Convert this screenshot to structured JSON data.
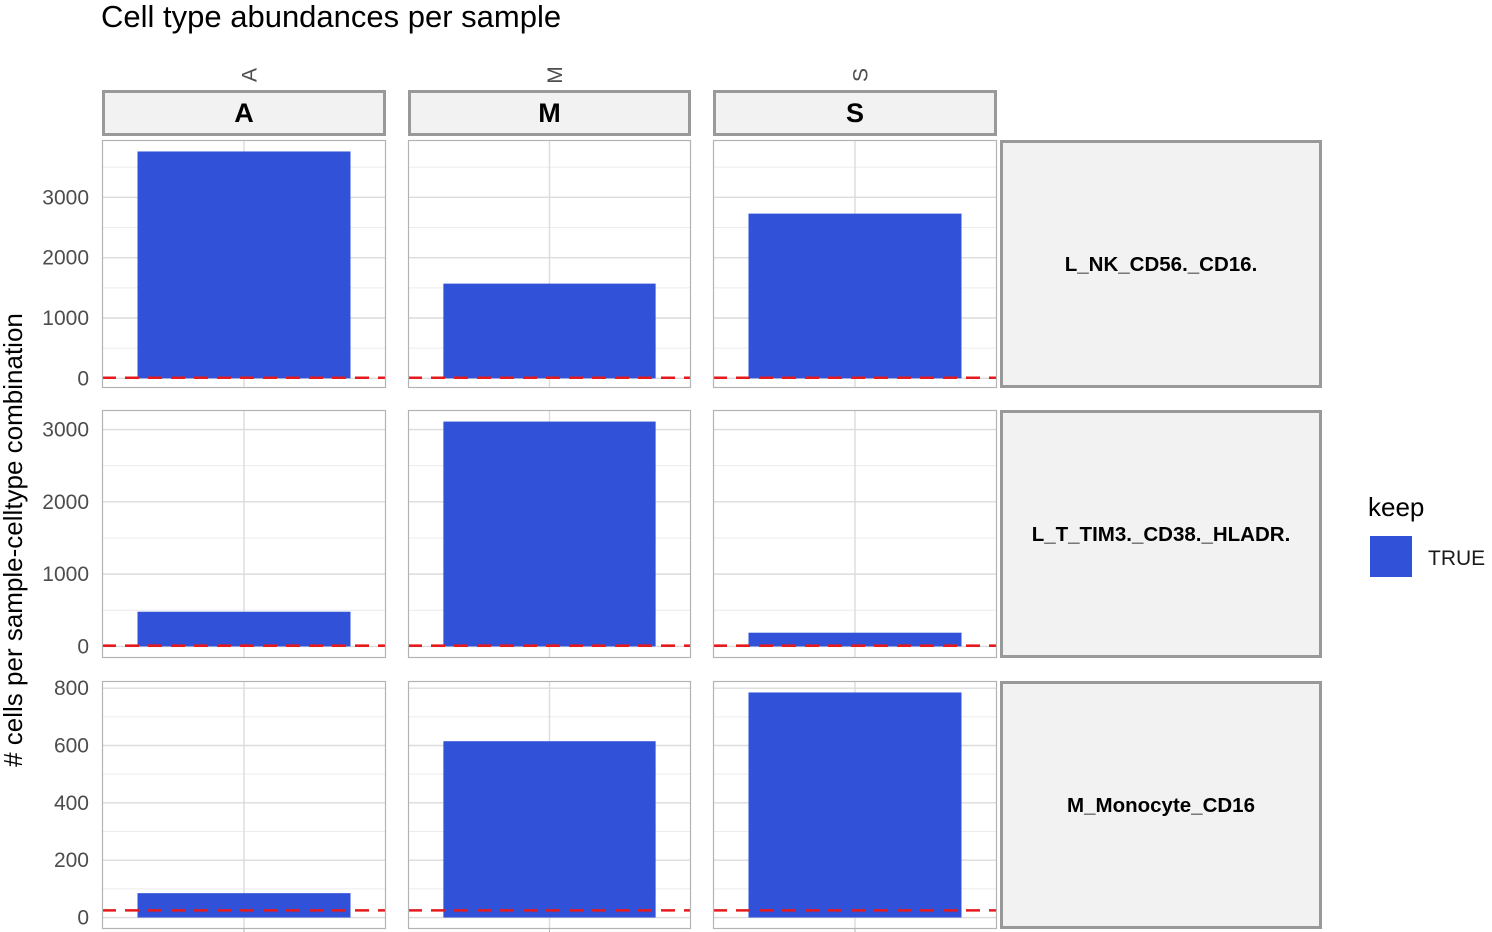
{
  "chart_data": {
    "type": "bar",
    "title": "Cell type abundances per sample",
    "ylabel": "# cells per sample-celltype combination",
    "xlabel": "",
    "facet_columns": [
      "A",
      "M",
      "S"
    ],
    "x_tick_labels": [
      "A",
      "M",
      "S"
    ],
    "facet_rows": [
      {
        "label": "L_NK_CD56._CD16.",
        "values": [
          3760,
          1570,
          2730
        ],
        "ylim": [
          -160,
          3950
        ],
        "yticks": [
          0,
          1000,
          2000,
          3000
        ],
        "threshold": 10
      },
      {
        "label": "L_T_TIM3._CD38._HLADR.",
        "values": [
          480,
          3110,
          190
        ],
        "ylim": [
          -160,
          3270
        ],
        "yticks": [
          0,
          1000,
          2000,
          3000
        ],
        "threshold": 10
      },
      {
        "label": "M_Monocyte_CD16",
        "values": [
          85,
          615,
          785
        ],
        "ylim": [
          -40,
          825
        ],
        "yticks": [
          0,
          200,
          400,
          600,
          800
        ],
        "threshold": 25
      }
    ],
    "threshold_line_color": "#e41a1c",
    "bar_color": "#3151d8",
    "grid": true,
    "legend": {
      "title": "keep",
      "position": "right",
      "entries": [
        {
          "label": "TRUE",
          "color": "#3151d8"
        }
      ]
    }
  }
}
